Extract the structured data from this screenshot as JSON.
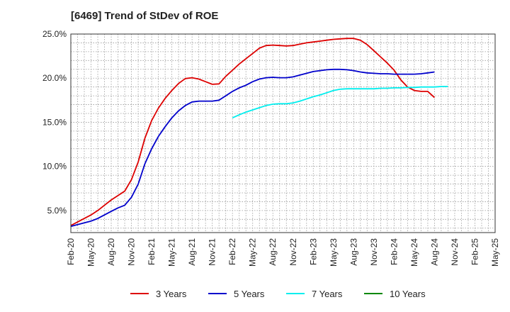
{
  "chart_data": {
    "type": "line",
    "title": "[6469]  Trend of StDev of ROE",
    "xlabel": "",
    "ylabel": "",
    "ylim": [
      2.5,
      25.0
    ],
    "yticks": [
      5.0,
      10.0,
      15.0,
      20.0,
      25.0
    ],
    "ytick_labels": [
      "5.0%",
      "10.0%",
      "15.0%",
      "20.0%",
      "25.0%"
    ],
    "xticks": [
      "Feb-20",
      "May-20",
      "Aug-20",
      "Nov-20",
      "Feb-21",
      "May-21",
      "Aug-21",
      "Nov-21",
      "Feb-22",
      "May-22",
      "Aug-22",
      "Nov-22",
      "Feb-23",
      "May-23",
      "Aug-23",
      "Nov-23",
      "Feb-24",
      "May-24",
      "Aug-24",
      "Nov-24",
      "Feb-25",
      "May-25"
    ],
    "grid": true,
    "legend_position": "bottom",
    "series": [
      {
        "name": "3 Years",
        "color": "#dd0000",
        "start": "Feb-20",
        "values": [
          3.3,
          3.7,
          4.1,
          4.5,
          5.0,
          5.6,
          6.2,
          6.7,
          7.2,
          8.5,
          10.5,
          13.2,
          15.2,
          16.6,
          17.7,
          18.6,
          19.4,
          19.95,
          20.05,
          19.9,
          19.6,
          19.3,
          19.35,
          20.2,
          20.9,
          21.6,
          22.2,
          22.8,
          23.4,
          23.7,
          23.75,
          23.7,
          23.65,
          23.7,
          23.85,
          24.0,
          24.1,
          24.2,
          24.3,
          24.4,
          24.45,
          24.5,
          24.5,
          24.3,
          23.8,
          23.1,
          22.4,
          21.7,
          20.9,
          19.8,
          19.0,
          18.6,
          18.5,
          18.5,
          17.8
        ]
      },
      {
        "name": "5 Years",
        "color": "#0000cc",
        "start": "Feb-20",
        "values": [
          3.2,
          3.4,
          3.6,
          3.8,
          4.1,
          4.5,
          4.9,
          5.3,
          5.6,
          6.5,
          8.0,
          10.3,
          12.0,
          13.4,
          14.5,
          15.5,
          16.3,
          16.9,
          17.3,
          17.4,
          17.4,
          17.4,
          17.5,
          18.0,
          18.5,
          18.9,
          19.2,
          19.6,
          19.9,
          20.05,
          20.1,
          20.05,
          20.05,
          20.15,
          20.35,
          20.55,
          20.75,
          20.85,
          20.95,
          21.0,
          21.0,
          20.95,
          20.85,
          20.7,
          20.6,
          20.55,
          20.5,
          20.5,
          20.45,
          20.45,
          20.45,
          20.45,
          20.5,
          20.6,
          20.7
        ]
      },
      {
        "name": "7 Years",
        "color": "#00eeee",
        "start": "Feb-22",
        "values": [
          15.5,
          15.85,
          16.15,
          16.4,
          16.65,
          16.9,
          17.05,
          17.1,
          17.1,
          17.2,
          17.4,
          17.65,
          17.9,
          18.1,
          18.35,
          18.6,
          18.75,
          18.8,
          18.8,
          18.8,
          18.8,
          18.8,
          18.85,
          18.85,
          18.9,
          18.9,
          18.95,
          18.95,
          19.0,
          19.0,
          19.0,
          19.05,
          19.05
        ]
      },
      {
        "name": "10 Years",
        "color": "#008800",
        "start": "Feb-20",
        "values": []
      }
    ]
  }
}
